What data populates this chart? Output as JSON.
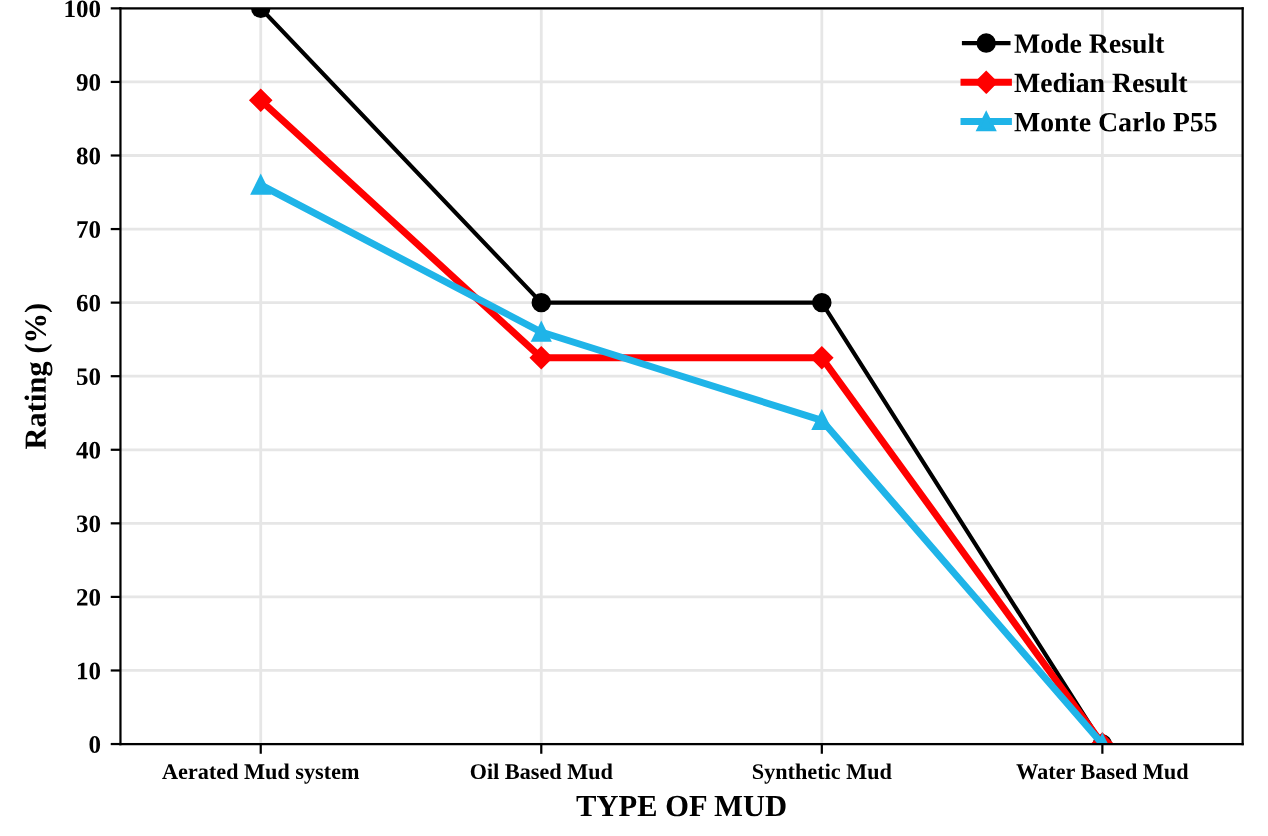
{
  "chart_data": {
    "type": "line",
    "xlabel": "TYPE OF MUD",
    "ylabel": "Rating (%)",
    "categories": [
      "Aerated Mud system",
      "Oil Based Mud",
      "Synthetic Mud",
      "Water Based Mud"
    ],
    "series": [
      {
        "name": "Mode Result",
        "color": "#000000",
        "marker": "circle",
        "values": [
          100,
          60,
          60,
          0
        ]
      },
      {
        "name": "Median Result",
        "color": "#ff0000",
        "marker": "diamond",
        "values": [
          87.5,
          52.5,
          52.5,
          0
        ]
      },
      {
        "name": "Monte Carlo P55",
        "color": "#1fb4e8",
        "marker": "triangle",
        "values": [
          76,
          56,
          44,
          0
        ]
      }
    ],
    "ylim": [
      0,
      100
    ],
    "yticks": [
      0,
      10,
      20,
      30,
      40,
      50,
      60,
      70,
      80,
      90,
      100
    ],
    "grid": true,
    "legend": "top right",
    "line_style": "solid"
  }
}
